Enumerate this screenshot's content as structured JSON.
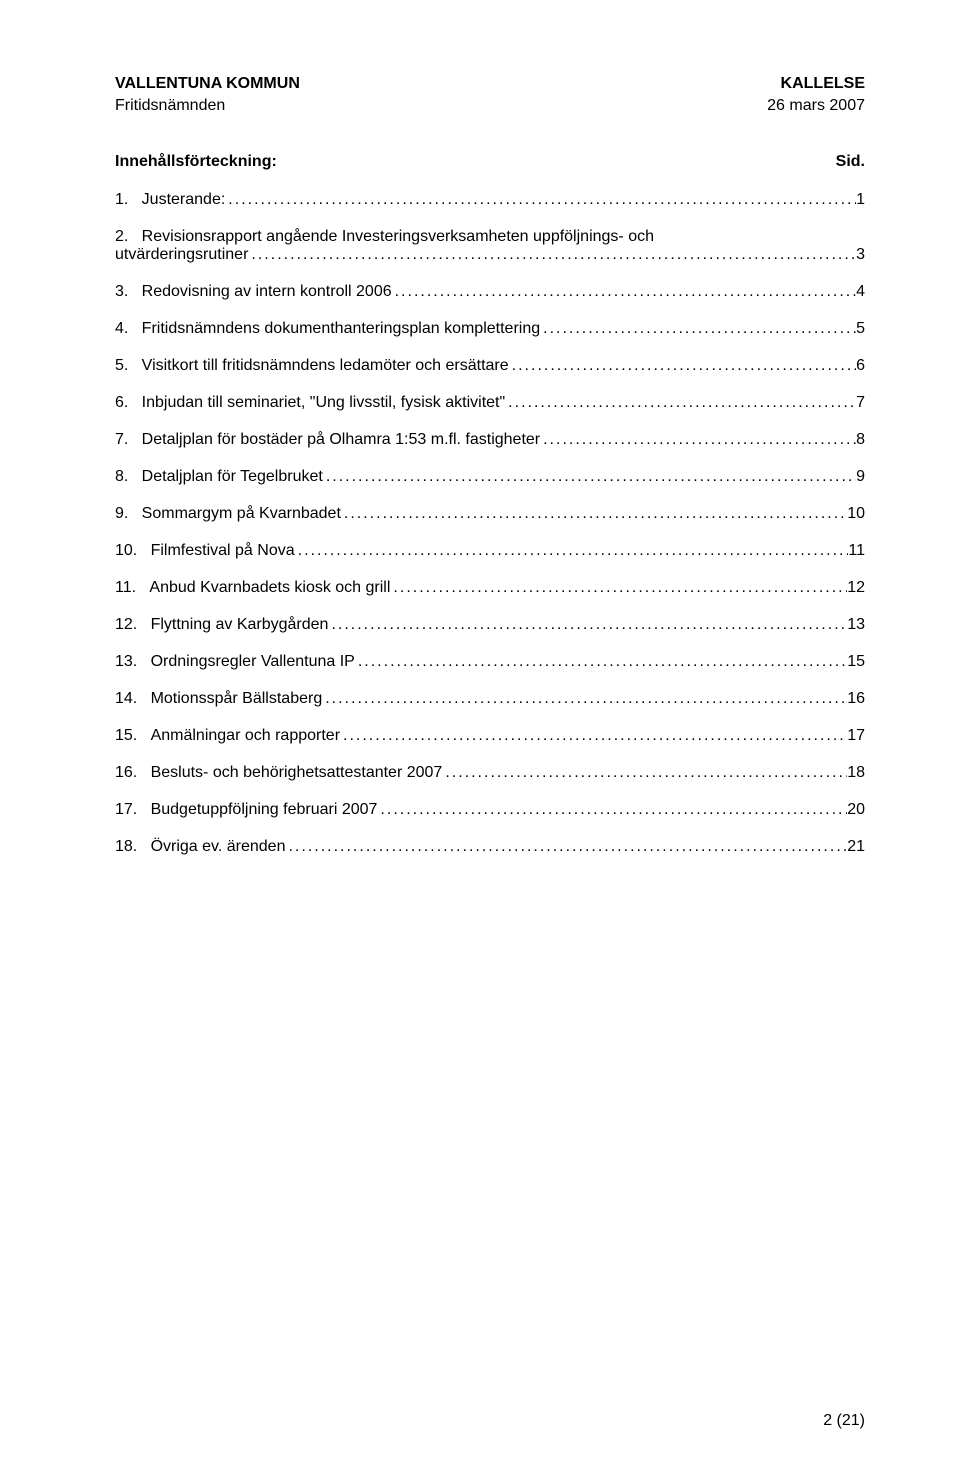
{
  "header": {
    "org": "VALLENTUNA KOMMUN",
    "doc_type": "KALLELSE",
    "committee": "Fritidsnämnden",
    "date": "26 mars 2007"
  },
  "toc": {
    "title": "Innehållsförteckning:",
    "sid_label": "Sid.",
    "entries": [
      {
        "num": "1.",
        "label": "Justerande:",
        "page": "1"
      },
      {
        "num": "2.",
        "label_line1": "Revisionsrapport angående Investeringsverksamheten uppföljnings- och",
        "label_line2": "utvärderingsrutiner",
        "page": "3",
        "wrap": true
      },
      {
        "num": "3.",
        "label": "Redovisning av intern kontroll 2006",
        "page": "4"
      },
      {
        "num": "4.",
        "label": "Fritidsnämndens dokumenthanteringsplan komplettering",
        "page": "5"
      },
      {
        "num": "5.",
        "label": "Visitkort till fritidsnämndens ledamöter och ersättare",
        "page": "6"
      },
      {
        "num": "6.",
        "label": "Inbjudan till seminariet, \"Ung livsstil, fysisk aktivitet\"",
        "page": "7"
      },
      {
        "num": "7.",
        "label": "Detaljplan för bostäder på Olhamra 1:53 m.fl. fastigheter",
        "page": "8"
      },
      {
        "num": "8.",
        "label": "Detaljplan för Tegelbruket",
        "page": "9"
      },
      {
        "num": "9.",
        "label": "Sommargym på Kvarnbadet",
        "page": "10"
      },
      {
        "num": "10.",
        "label": "Filmfestival på Nova",
        "page": "11"
      },
      {
        "num": "11.",
        "label": "Anbud Kvarnbadets kiosk och grill",
        "page": "12"
      },
      {
        "num": "12.",
        "label": "Flyttning av Karbygården",
        "page": "13"
      },
      {
        "num": "13.",
        "label": "Ordningsregler Vallentuna IP",
        "page": "15"
      },
      {
        "num": "14.",
        "label": "Motionsspår Bällstaberg",
        "page": "16"
      },
      {
        "num": "15.",
        "label": "Anmälningar och rapporter",
        "page": "17"
      },
      {
        "num": "16.",
        "label": "Besluts- och behörighetsattestanter 2007",
        "page": "18"
      },
      {
        "num": "17.",
        "label": "Budgetuppföljning februari 2007",
        "page": "20"
      },
      {
        "num": "18.",
        "label": "Övriga ev. ärenden",
        "page": "21"
      }
    ]
  },
  "footer": {
    "page_indicator": "2 (21)"
  },
  "colors": {
    "background": "#ffffff",
    "text": "#000000"
  },
  "typography": {
    "font_family": "Arial",
    "base_size_pt": 12,
    "header_weight": "bold"
  }
}
